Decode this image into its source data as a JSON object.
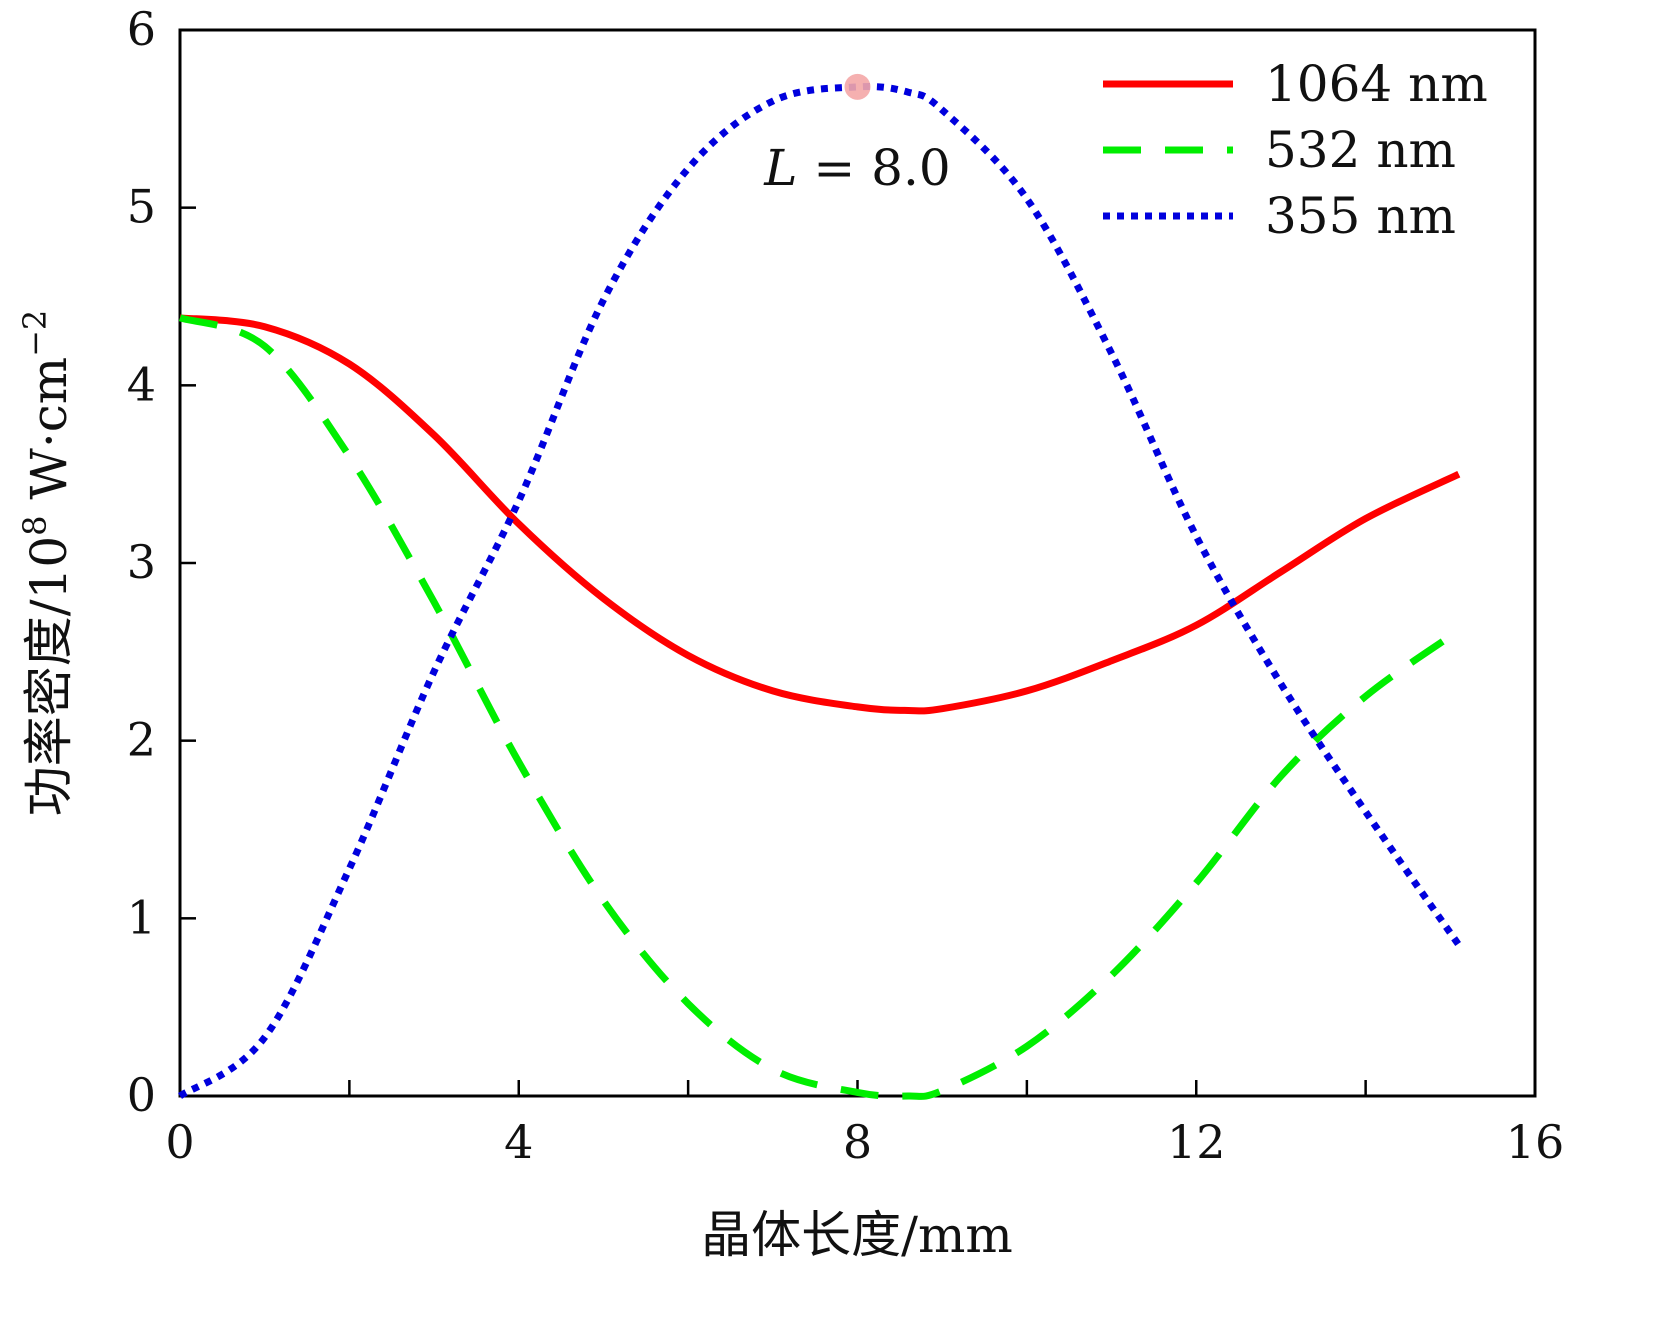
{
  "chart_data": {
    "type": "line",
    "xlabel": "晶体长度/mm",
    "ylabel_main": "功率密度/10",
    "ylabel_exp": "8",
    "ylabel_unit": " W·cm",
    "ylabel_unit_exp": "−2",
    "xlim": [
      0,
      16
    ],
    "ylim": [
      0,
      6
    ],
    "xticks": [
      0,
      4,
      8,
      12,
      16
    ],
    "yticks": [
      0,
      1,
      2,
      3,
      4,
      5,
      6
    ],
    "minor_xticks": [
      2,
      6,
      10,
      14
    ],
    "legend_position": "top-right",
    "annotation": {
      "var": "L",
      "text": " = 8.0",
      "point": [
        8.0,
        5.68
      ],
      "marker_color": "#f4a7a7"
    },
    "x": [
      0,
      1,
      2,
      3,
      4,
      5,
      6,
      7,
      8,
      8.6,
      9,
      10,
      11,
      12,
      13,
      14,
      15.1
    ],
    "series": [
      {
        "name": "1064 nm",
        "color": "#ff0000",
        "dash": "solid",
        "values": [
          4.38,
          4.33,
          4.12,
          3.72,
          3.22,
          2.8,
          2.48,
          2.28,
          2.19,
          2.17,
          2.18,
          2.28,
          2.45,
          2.65,
          2.95,
          3.25,
          3.5
        ]
      },
      {
        "name": "532 nm",
        "color": "#00ee00",
        "dash": "dashed",
        "values": [
          4.38,
          4.22,
          3.6,
          2.78,
          1.88,
          1.1,
          0.52,
          0.15,
          0.02,
          0.0,
          0.03,
          0.28,
          0.68,
          1.2,
          1.8,
          2.25,
          2.62
        ]
      },
      {
        "name": "355 nm",
        "color": "#0000dd",
        "dash": "dotted",
        "values": [
          0,
          0.33,
          1.28,
          2.39,
          3.35,
          4.48,
          5.22,
          5.6,
          5.68,
          5.65,
          5.55,
          5.05,
          4.18,
          3.15,
          2.32,
          1.6,
          0.85
        ]
      }
    ]
  }
}
